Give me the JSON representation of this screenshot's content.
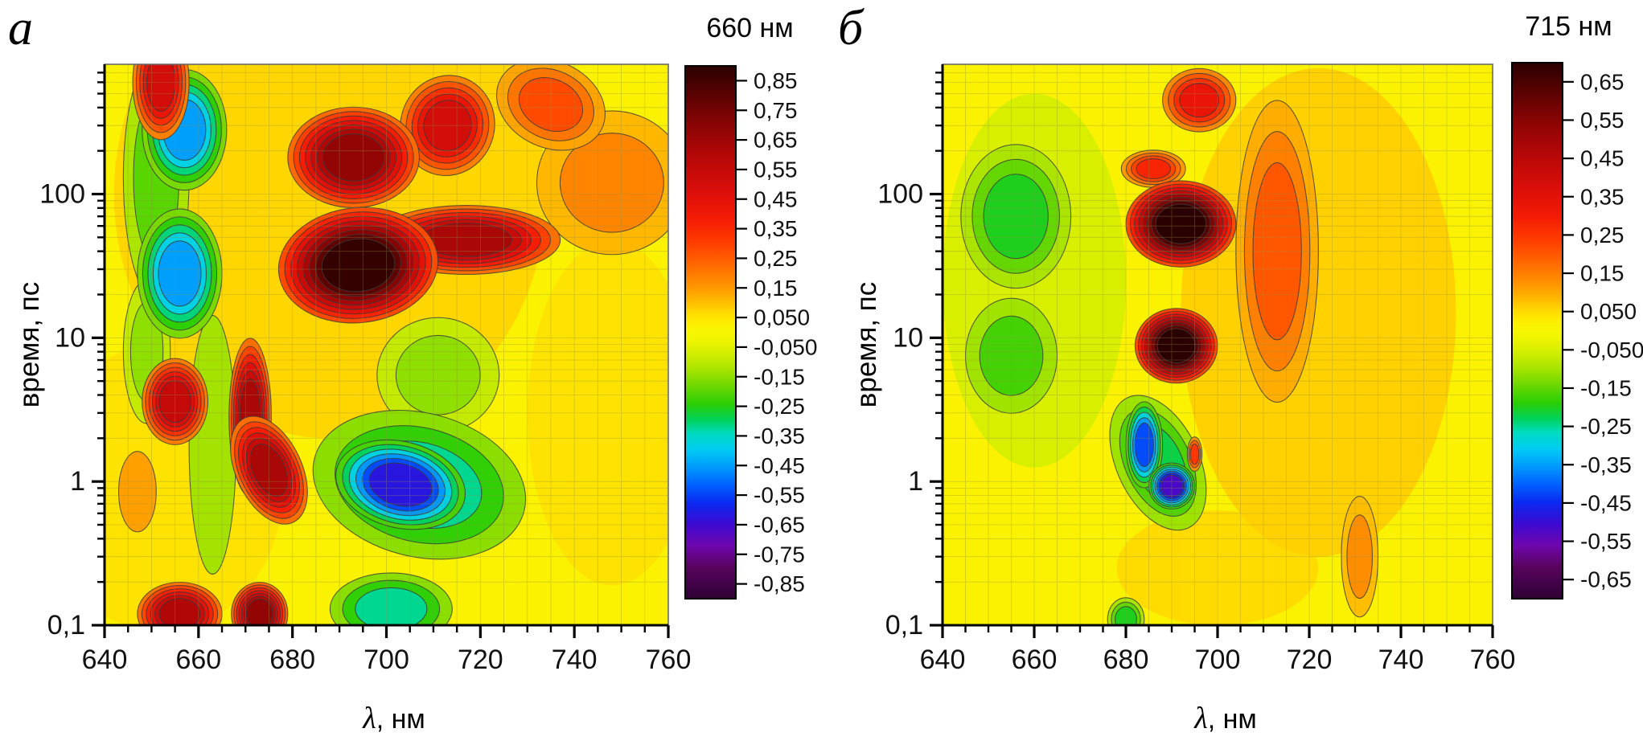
{
  "figure": {
    "background": "#ffffff",
    "contour_line_color": "#3a3a3a",
    "grid_color": "#909046",
    "axis_color": "#000000",
    "frame_color": "#6a6a6a",
    "colormap_stops": [
      [
        1.0,
        "#2b0000"
      ],
      [
        0.9,
        "#560202"
      ],
      [
        0.78,
        "#8a0404"
      ],
      [
        0.65,
        "#b80808"
      ],
      [
        0.52,
        "#dd0f0a"
      ],
      [
        0.42,
        "#f51d05"
      ],
      [
        0.33,
        "#ff4000"
      ],
      [
        0.25,
        "#ff6a00"
      ],
      [
        0.18,
        "#ff9000"
      ],
      [
        0.12,
        "#ffb800"
      ],
      [
        0.07,
        "#ffdc00"
      ],
      [
        0.03,
        "#fcf000"
      ],
      [
        0.0,
        "#f7f700"
      ],
      [
        -0.03,
        "#eef400"
      ],
      [
        -0.08,
        "#d3ee00"
      ],
      [
        -0.14,
        "#a8e400"
      ],
      [
        -0.2,
        "#6fd800"
      ],
      [
        -0.27,
        "#2ace06"
      ],
      [
        -0.33,
        "#00d25e"
      ],
      [
        -0.38,
        "#00dbc0"
      ],
      [
        -0.44,
        "#00ccf2"
      ],
      [
        -0.5,
        "#009ffc"
      ],
      [
        -0.57,
        "#0063ff"
      ],
      [
        -0.64,
        "#0a2af0"
      ],
      [
        -0.72,
        "#3c0ad2"
      ],
      [
        -0.8,
        "#6e06ae"
      ],
      [
        -0.88,
        "#59045f"
      ],
      [
        -1.0,
        "#2e0233"
      ]
    ]
  },
  "chart_data": [
    {
      "type": "filled_contour",
      "panel_label": "a",
      "xlabel_lambda": "λ",
      "xlabel_unit": ", нм",
      "ylabel": "время, пс",
      "x_axis": {
        "range": [
          640,
          760
        ],
        "major_ticks": [
          640,
          660,
          680,
          700,
          720,
          740,
          760
        ],
        "major_tick_labels": [
          "640",
          "660",
          "680",
          "700",
          "720",
          "740",
          "760"
        ],
        "minor_step": 5
      },
      "y_axis": {
        "scale": "log",
        "range": [
          0.1,
          800
        ],
        "major_ticks": [
          {
            "v": 0.1,
            "label": "0,1"
          },
          {
            "v": 1,
            "label": "1"
          },
          {
            "v": 10,
            "label": "10"
          },
          {
            "v": 100,
            "label": "100"
          }
        ]
      },
      "colorbar": {
        "title": "660 нм",
        "range": [
          -0.9,
          0.9
        ],
        "ticks": [
          {
            "v": 0.85,
            "label": "0,85"
          },
          {
            "v": 0.75,
            "label": "0,75"
          },
          {
            "v": 0.65,
            "label": "0,65"
          },
          {
            "v": 0.55,
            "label": "0,55"
          },
          {
            "v": 0.45,
            "label": "0,45"
          },
          {
            "v": 0.35,
            "label": "0,35"
          },
          {
            "v": 0.25,
            "label": "0,25"
          },
          {
            "v": 0.15,
            "label": "0,15"
          },
          {
            "v": 0.05,
            "label": "0,050"
          },
          {
            "v": -0.05,
            "label": "-0,050"
          },
          {
            "v": -0.15,
            "label": "-0,15"
          },
          {
            "v": -0.25,
            "label": "-0,25"
          },
          {
            "v": -0.35,
            "label": "-0,35"
          },
          {
            "v": -0.45,
            "label": "-0,45"
          },
          {
            "v": -0.55,
            "label": "-0,55"
          },
          {
            "v": -0.65,
            "label": "-0,65"
          },
          {
            "v": -0.75,
            "label": "-0,75"
          },
          {
            "v": -0.85,
            "label": "-0,85"
          }
        ]
      },
      "features": [
        {
          "nm": 688,
          "ps": 100,
          "rnm": 46,
          "rdec": 1.7,
          "value": 0.07,
          "rot": 0
        },
        {
          "nm": 748,
          "ps": 3,
          "rnm": 18,
          "rdec": 1.2,
          "value": 0.05,
          "rot": 0
        },
        {
          "nm": 652,
          "ps": 0.9,
          "rnm": 26,
          "rdec": 1.0,
          "value": 0.05,
          "rot": 0
        },
        {
          "nm": 748,
          "ps": 120,
          "rnm": 16,
          "rdec": 0.5,
          "value": 0.18,
          "rot": 0
        },
        {
          "nm": 652,
          "ps": 600,
          "rnm": 6,
          "rdec": 0.4,
          "value": 0.5,
          "rot": 0
        },
        {
          "nm": 657,
          "ps": 280,
          "rnm": 9,
          "rdec": 0.42,
          "value": -0.45,
          "rot": 0
        },
        {
          "nm": 651,
          "ps": 130,
          "rnm": 7,
          "rdec": 0.85,
          "value": -0.2,
          "rot": 0
        },
        {
          "nm": 656,
          "ps": 28,
          "rnm": 9,
          "rdec": 0.45,
          "value": -0.45,
          "rot": 0
        },
        {
          "nm": 649,
          "ps": 8,
          "rnm": 5,
          "rdec": 0.5,
          "value": -0.15,
          "rot": 0
        },
        {
          "nm": 693,
          "ps": 180,
          "rnm": 14,
          "rdec": 0.35,
          "value": 0.68,
          "rot": 0
        },
        {
          "nm": 713,
          "ps": 300,
          "rnm": 10,
          "rdec": 0.35,
          "value": 0.5,
          "rot": 15
        },
        {
          "nm": 735,
          "ps": 420,
          "rnm": 12,
          "rdec": 0.3,
          "value": 0.28,
          "rot": 25
        },
        {
          "nm": 694,
          "ps": 32,
          "rnm": 17,
          "rdec": 0.4,
          "value": 0.88,
          "rot": -6
        },
        {
          "nm": 717,
          "ps": 48,
          "rnm": 20,
          "rdec": 0.24,
          "value": 0.62,
          "rot": 0
        },
        {
          "nm": 655,
          "ps": 3.6,
          "rnm": 7,
          "rdec": 0.3,
          "value": 0.55,
          "rot": 0
        },
        {
          "nm": 671,
          "ps": 2.8,
          "rnm": 4.5,
          "rdec": 0.55,
          "value": 0.62,
          "rot": 0
        },
        {
          "nm": 675,
          "ps": 1.2,
          "rnm": 7,
          "rdec": 0.4,
          "value": 0.62,
          "rot": -25
        },
        {
          "nm": 663,
          "ps": 1.8,
          "rnm": 5,
          "rdec": 0.9,
          "value": -0.13,
          "rot": 0
        },
        {
          "nm": 707,
          "ps": 0.95,
          "rnm": 23,
          "rdec": 0.5,
          "value": -0.32,
          "rot": 14
        },
        {
          "nm": 703,
          "ps": 0.95,
          "rnm": 14,
          "rdec": 0.3,
          "value": -0.62,
          "rot": 14
        },
        {
          "nm": 711,
          "ps": 5.5,
          "rnm": 13,
          "rdec": 0.4,
          "value": -0.15,
          "rot": 0
        },
        {
          "nm": 656,
          "ps": 0.12,
          "rnm": 9,
          "rdec": 0.22,
          "value": 0.6,
          "rot": 0
        },
        {
          "nm": 673,
          "ps": 0.12,
          "rnm": 6,
          "rdec": 0.22,
          "value": 0.68,
          "rot": 0
        },
        {
          "nm": 701,
          "ps": 0.13,
          "rnm": 13,
          "rdec": 0.25,
          "value": -0.32,
          "rot": 0
        },
        {
          "nm": 647,
          "ps": 0.85,
          "rnm": 4,
          "rdec": 0.28,
          "value": 0.14,
          "rot": 0
        }
      ]
    },
    {
      "type": "filled_contour",
      "panel_label": "б",
      "xlabel_lambda": "λ",
      "xlabel_unit": ", нм",
      "ylabel": "время, пс",
      "x_axis": {
        "range": [
          640,
          760
        ],
        "major_ticks": [
          640,
          660,
          680,
          700,
          720,
          740,
          760
        ],
        "major_tick_labels": [
          "640",
          "660",
          "680",
          "700",
          "720",
          "740",
          "760"
        ],
        "minor_step": 5
      },
      "y_axis": {
        "scale": "log",
        "range": [
          0.1,
          800
        ],
        "major_ticks": [
          {
            "v": 0.1,
            "label": "0,1"
          },
          {
            "v": 1,
            "label": "1"
          },
          {
            "v": 10,
            "label": "10"
          },
          {
            "v": 100,
            "label": "100"
          }
        ]
      },
      "colorbar": {
        "title": "715 нм",
        "range": [
          -0.7,
          0.7
        ],
        "ticks": [
          {
            "v": 0.65,
            "label": "0,65"
          },
          {
            "v": 0.55,
            "label": "0,55"
          },
          {
            "v": 0.45,
            "label": "0,45"
          },
          {
            "v": 0.35,
            "label": "0,35"
          },
          {
            "v": 0.25,
            "label": "0,25"
          },
          {
            "v": 0.15,
            "label": "0,15"
          },
          {
            "v": 0.05,
            "label": "0,050"
          },
          {
            "v": -0.05,
            "label": "-0,050"
          },
          {
            "v": -0.15,
            "label": "-0,15"
          },
          {
            "v": -0.25,
            "label": "-0,25"
          },
          {
            "v": -0.35,
            "label": "-0,35"
          },
          {
            "v": -0.45,
            "label": "-0,45"
          },
          {
            "v": -0.55,
            "label": "-0,55"
          },
          {
            "v": -0.65,
            "label": "-0,65"
          }
        ]
      },
      "features": [
        {
          "nm": 722,
          "ps": 15,
          "rnm": 30,
          "rdec": 1.7,
          "value": 0.06,
          "rot": 0
        },
        {
          "nm": 660,
          "ps": 25,
          "rnm": 20,
          "rdec": 1.3,
          "value": -0.05,
          "rot": 0
        },
        {
          "nm": 700,
          "ps": 0.25,
          "rnm": 22,
          "rdec": 0.4,
          "value": 0.05,
          "rot": 0
        },
        {
          "nm": 696,
          "ps": 450,
          "rnm": 8,
          "rdec": 0.22,
          "value": 0.33,
          "rot": 0
        },
        {
          "nm": 713,
          "ps": 40,
          "rnm": 9,
          "rdec": 1.05,
          "value": 0.2,
          "rot": 0
        },
        {
          "nm": 686,
          "ps": 150,
          "rnm": 7,
          "rdec": 0.13,
          "value": 0.28,
          "rot": 0
        },
        {
          "nm": 692,
          "ps": 62,
          "rnm": 12,
          "rdec": 0.3,
          "value": 0.7,
          "rot": 0
        },
        {
          "nm": 691,
          "ps": 8.8,
          "rnm": 9,
          "rdec": 0.26,
          "value": 0.7,
          "rot": 0
        },
        {
          "nm": 656,
          "ps": 70,
          "rnm": 12,
          "rdec": 0.5,
          "value": -0.2,
          "rot": 0
        },
        {
          "nm": 655,
          "ps": 7.5,
          "rnm": 10,
          "rdec": 0.4,
          "value": -0.17,
          "rot": 0
        },
        {
          "nm": 687,
          "ps": 1.35,
          "rnm": 9,
          "rdec": 0.5,
          "value": -0.22,
          "rot": -25
        },
        {
          "nm": 684,
          "ps": 1.8,
          "rnm": 4,
          "rdec": 0.3,
          "value": -0.42,
          "rot": 0
        },
        {
          "nm": 690,
          "ps": 0.93,
          "rnm": 5,
          "rdec": 0.16,
          "value": -0.52,
          "rot": 0
        },
        {
          "nm": 695,
          "ps": 1.55,
          "rnm": 1.6,
          "rdec": 0.12,
          "value": 0.25,
          "rot": 0
        },
        {
          "nm": 731,
          "ps": 0.3,
          "rnm": 4,
          "rdec": 0.42,
          "value": 0.13,
          "rot": 0
        },
        {
          "nm": 680,
          "ps": 0.11,
          "rnm": 4,
          "rdec": 0.15,
          "value": -0.2,
          "rot": 0
        }
      ]
    }
  ]
}
